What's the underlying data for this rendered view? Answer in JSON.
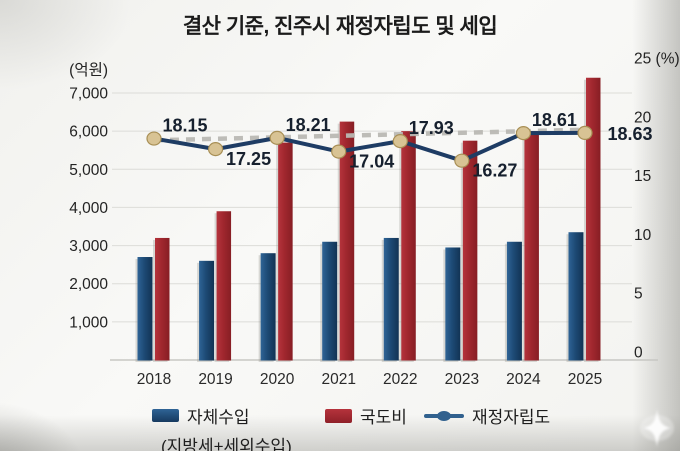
{
  "title": "결산 기준, 진주시 재정자립도 및 세입",
  "chart_data": {
    "type": "bar",
    "subtype": "grouped-bars-with-line-combo",
    "title": "결산 기준, 진주시 재정자립도 및 세입",
    "categories": [
      "2018",
      "2019",
      "2020",
      "2021",
      "2022",
      "2023",
      "2024",
      "2025"
    ],
    "series": [
      {
        "name": "자체수입 (지방세+세외수입)",
        "type": "bar",
        "axis": "left",
        "color": "#1d4a75",
        "values": [
          2700,
          2600,
          2800,
          3100,
          3200,
          2950,
          3100,
          3350
        ]
      },
      {
        "name": "국도비",
        "type": "bar",
        "axis": "left",
        "color": "#a0272e",
        "values": [
          3200,
          3900,
          5700,
          6250,
          6000,
          5750,
          6000,
          7400
        ]
      },
      {
        "name": "재정자립도",
        "type": "line",
        "axis": "right",
        "color": "#1e3c64",
        "marker_color": "#d8c394",
        "values": [
          18.15,
          17.25,
          18.21,
          17.04,
          17.93,
          16.27,
          18.61,
          18.63
        ],
        "data_labels": [
          "18.15",
          "17.25",
          "18.21",
          "17.04",
          "17.93",
          "16.27",
          "18.61",
          "18.63"
        ],
        "label_positions": [
          "above",
          "below",
          "above",
          "below",
          "above",
          "below",
          "above",
          "right"
        ]
      }
    ],
    "trend_line": {
      "style": "dashed",
      "color": "#bab9b4",
      "start_value": 18.0,
      "end_value": 18.9
    },
    "left_axis": {
      "unit_label": "(억원)",
      "ticks": [
        "7,000",
        "6,000",
        "5,000",
        "4,000",
        "3,000",
        "2,000",
        "1,000"
      ],
      "tick_values": [
        7000,
        6000,
        5000,
        4000,
        3000,
        2000,
        1000
      ],
      "min": 0,
      "max": 7000
    },
    "right_axis": {
      "unit_label": "(%)",
      "top_tick_label": "25 (%)",
      "ticks": [
        "25",
        "20",
        "15",
        "10",
        "5",
        "0"
      ],
      "tick_values": [
        25,
        20,
        15,
        10,
        5,
        0
      ],
      "min": 0,
      "max": 25
    },
    "grid": true,
    "legend_position": "bottom"
  },
  "legend": {
    "items": [
      {
        "label": "자체수입",
        "sublabel": "(지방세+세외수입)",
        "swatch": "bar",
        "color": "#1d4a75"
      },
      {
        "label": "국도비",
        "swatch": "bar",
        "color": "#a0272e"
      },
      {
        "label": "재정자립도",
        "swatch": "line-dot",
        "color": "#31618e"
      }
    ]
  },
  "colors": {
    "background": "#f3f3f0",
    "gridline": "#dcdcd8",
    "baseline": "#c7c7c3",
    "data_label_text": "#16202e",
    "axis_text": "#232323"
  }
}
